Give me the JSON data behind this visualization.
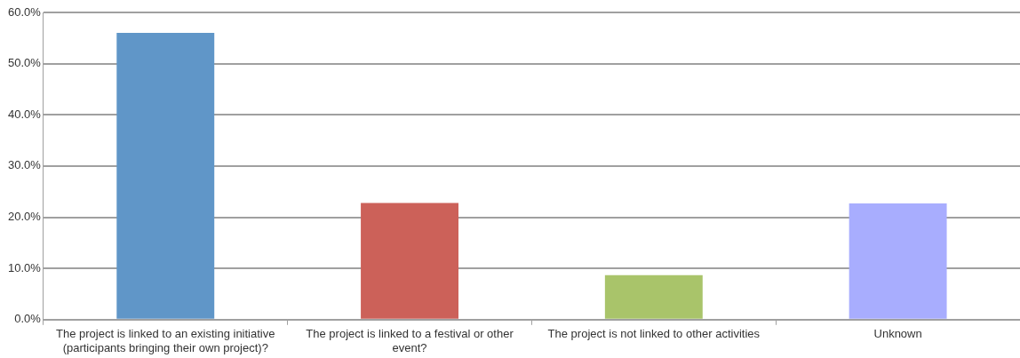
{
  "chart_data": {
    "type": "bar",
    "categories": [
      "The project is linked to an existing initiative (participants bringing their own project)?",
      "The project is linked to a festival or other event?",
      "The project is not linked to other activities",
      "Unknown"
    ],
    "values": [
      56.0,
      22.8,
      8.7,
      22.7
    ],
    "colors": [
      "#6096c8",
      "#cc6159",
      "#a9c46a",
      "#a8adfe"
    ],
    "ylim": [
      0,
      60
    ],
    "yticks": [
      {
        "value": 0,
        "label": "0.0%"
      },
      {
        "value": 10,
        "label": "10.0%"
      },
      {
        "value": 20,
        "label": "20.0%"
      },
      {
        "value": 30,
        "label": "30.0%"
      },
      {
        "value": 40,
        "label": "40.0%"
      },
      {
        "value": 50,
        "label": "50.0%"
      },
      {
        "value": 60,
        "label": "60.0%"
      }
    ],
    "grid": "y",
    "legend": false
  }
}
